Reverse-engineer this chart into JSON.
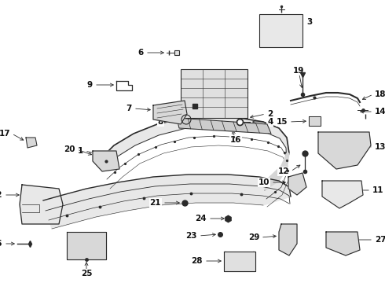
{
  "bg_color": "#ffffff",
  "line_color": "#2a2a2a",
  "text_color": "#111111",
  "bump_color": "#e8e8e8",
  "part_color": "#d8d8d8"
}
